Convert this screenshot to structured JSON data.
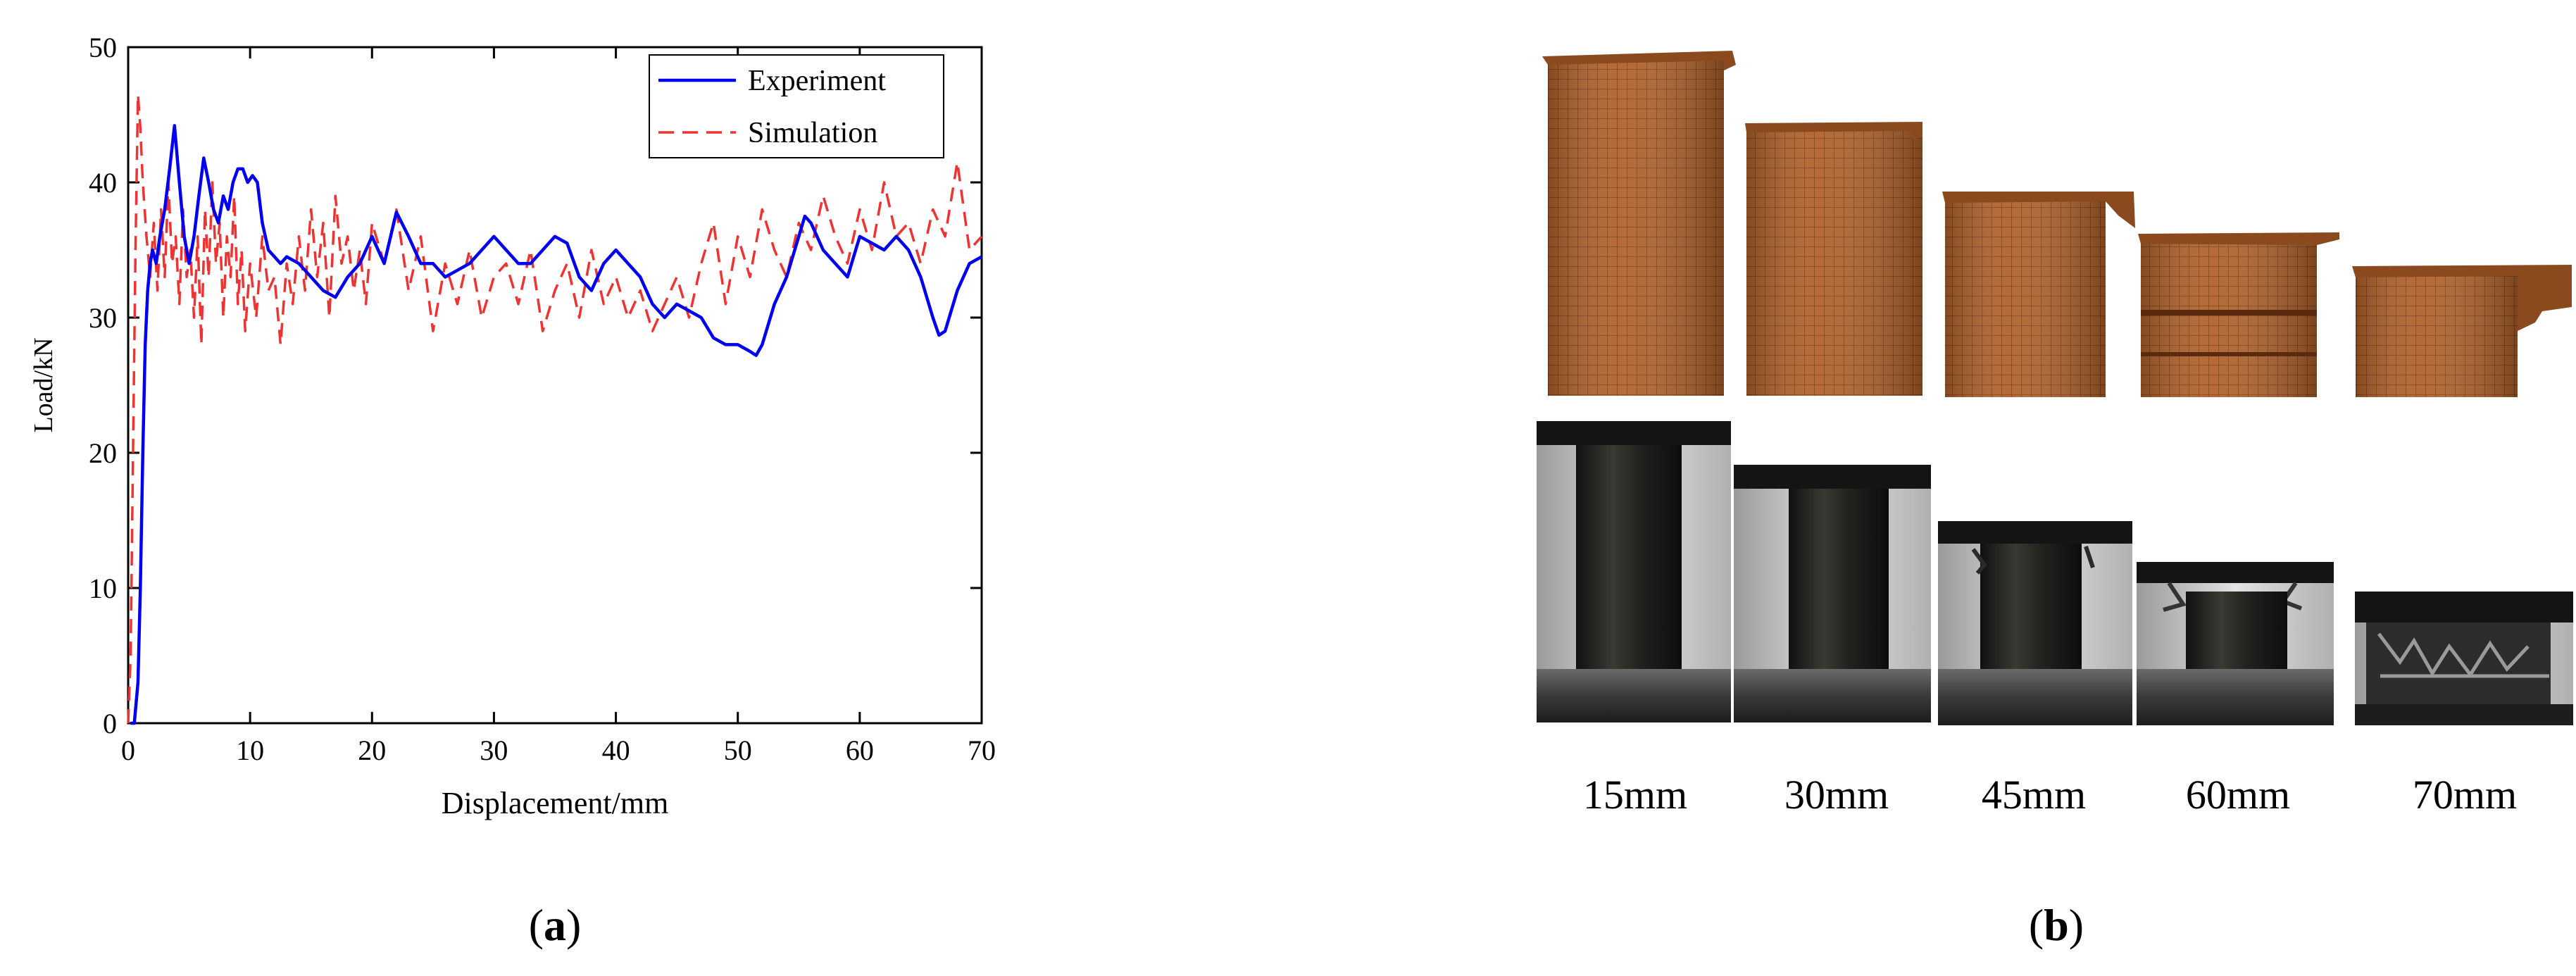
{
  "panel_a_label": "a",
  "panel_b_label": "b",
  "chart_data": {
    "type": "line",
    "title": "",
    "xlabel": "Displacement/mm",
    "ylabel": "Load/kN",
    "xlim": [
      0,
      70
    ],
    "ylim": [
      0,
      50
    ],
    "xticks": [
      0,
      10,
      20,
      30,
      40,
      50,
      60,
      70
    ],
    "yticks": [
      0,
      10,
      20,
      30,
      40,
      50
    ],
    "grid": false,
    "legend": "top-right",
    "series": [
      {
        "name": "Experiment",
        "color": "#0000ee",
        "style": "solid",
        "x": [
          0.2,
          0.5,
          0.8,
          1.0,
          1.2,
          1.4,
          1.6,
          1.8,
          2.0,
          2.3,
          2.6,
          3.0,
          3.4,
          3.8,
          4.2,
          4.6,
          5.0,
          5.4,
          5.8,
          6.2,
          6.6,
          7.0,
          7.4,
          7.8,
          8.2,
          8.6,
          9.0,
          9.4,
          9.8,
          10.2,
          10.6,
          11.0,
          11.5,
          12.0,
          12.5,
          13.0,
          14.0,
          15.0,
          16.0,
          17.0,
          18.0,
          19.0,
          20.0,
          21.0,
          22.0,
          23.0,
          24.0,
          25.0,
          26.0,
          27.0,
          28.0,
          29.0,
          30.0,
          31.0,
          32.0,
          33.0,
          34.0,
          35.0,
          36.0,
          37.0,
          38.0,
          39.0,
          40.0,
          41.0,
          42.0,
          43.0,
          44.0,
          45.0,
          46.0,
          47.0,
          48.0,
          49.0,
          50.0,
          51.0,
          51.5,
          52.0,
          53.0,
          54.0,
          55.0,
          55.5,
          56.0,
          57.0,
          58.0,
          59.0,
          60.0,
          61.0,
          62.0,
          63.0,
          64.0,
          65.0,
          66.0,
          66.5,
          67.0,
          68.0,
          69.0,
          70.0
        ],
        "y": [
          0,
          0,
          3,
          10,
          20,
          28,
          32,
          34,
          35,
          34,
          36,
          38,
          41,
          44.2,
          40,
          36,
          34,
          36,
          39,
          41.8,
          40,
          38,
          37,
          39,
          38,
          40,
          41,
          41,
          40,
          40.5,
          40,
          37,
          35,
          34.5,
          34,
          34.5,
          34,
          33,
          32,
          31.5,
          33,
          34,
          36,
          34,
          37.8,
          36,
          34,
          34,
          33,
          33.5,
          34,
          35,
          36,
          35,
          34,
          34,
          35,
          36,
          35.5,
          33,
          32,
          34,
          35,
          34,
          33,
          31,
          30,
          31,
          30.5,
          30,
          28.5,
          28,
          28,
          27.5,
          27.2,
          28,
          31,
          33,
          36,
          37.5,
          37,
          35,
          34,
          33,
          36,
          35.5,
          35,
          36,
          35,
          33,
          30,
          28.7,
          29,
          32,
          34,
          34.5
        ]
      },
      {
        "name": "Simulation",
        "color": "#ee3333",
        "style": "dashed",
        "x": [
          0.0,
          0.2,
          0.4,
          0.6,
          0.8,
          1.0,
          1.2,
          1.5,
          1.8,
          2.1,
          2.4,
          2.7,
          3.0,
          3.3,
          3.6,
          3.9,
          4.2,
          4.5,
          4.8,
          5.1,
          5.4,
          5.7,
          6.0,
          6.3,
          6.6,
          6.9,
          7.2,
          7.5,
          7.8,
          8.1,
          8.4,
          8.7,
          9.0,
          9.3,
          9.6,
          10.0,
          10.5,
          11.0,
          11.5,
          12.0,
          12.5,
          13.0,
          13.5,
          14.0,
          14.5,
          15.0,
          15.5,
          16.0,
          16.5,
          17.0,
          17.5,
          18.0,
          18.5,
          19.0,
          19.5,
          20.0,
          21.0,
          22.0,
          23.0,
          24.0,
          25.0,
          26.0,
          27.0,
          28.0,
          29.0,
          30.0,
          31.0,
          32.0,
          33.0,
          34.0,
          35.0,
          36.0,
          37.0,
          38.0,
          39.0,
          40.0,
          41.0,
          42.0,
          43.0,
          44.0,
          45.0,
          46.0,
          47.0,
          48.0,
          49.0,
          50.0,
          51.0,
          52.0,
          53.0,
          54.0,
          55.0,
          56.0,
          57.0,
          58.0,
          59.0,
          60.0,
          61.0,
          62.0,
          63.0,
          64.0,
          65.0,
          66.0,
          67.0,
          68.0,
          69.0,
          70.0
        ],
        "y": [
          0,
          5,
          20,
          35,
          46.5,
          44,
          40,
          36,
          33,
          37,
          32,
          38,
          33,
          40,
          34,
          36,
          31,
          38,
          33,
          35,
          30,
          36,
          28,
          38,
          33,
          40,
          34,
          37,
          30,
          36,
          33,
          39,
          31,
          35,
          29,
          34,
          30,
          36,
          32,
          33,
          28,
          34,
          31,
          36,
          32,
          38,
          33,
          37,
          30,
          39,
          34,
          36,
          32,
          35,
          31,
          37,
          34,
          38,
          32,
          36,
          29,
          34,
          31,
          35,
          30,
          33,
          34,
          31,
          35,
          29,
          32,
          34,
          30,
          35,
          31,
          33,
          30,
          32,
          29,
          31,
          33,
          30,
          34,
          37,
          31,
          36,
          33,
          38,
          35,
          33,
          37,
          35,
          39,
          36,
          34,
          38,
          35,
          40,
          36,
          37,
          34,
          38,
          36,
          41.5,
          35,
          36
        ]
      }
    ]
  },
  "snapshots": {
    "simulation_caption": "",
    "labels": [
      "15mm",
      "30mm",
      "45mm",
      "60mm",
      "70mm"
    ]
  }
}
